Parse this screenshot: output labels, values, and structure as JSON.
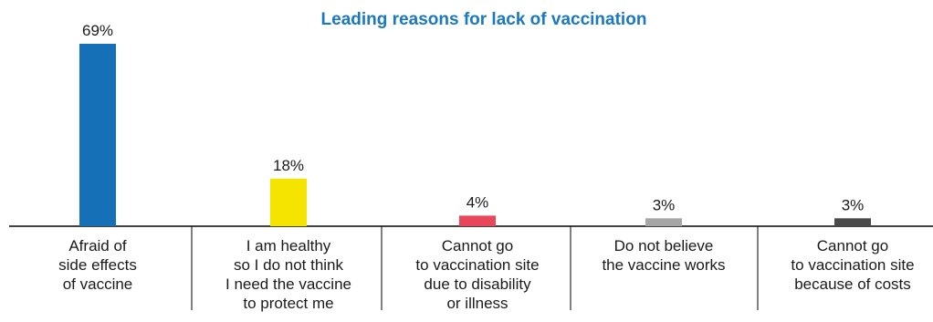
{
  "chart_data": {
    "type": "bar",
    "title": "Leading reasons for lack of vaccination",
    "title_color": "#1a78c2",
    "categories": [
      [
        "Afraid of",
        "side effects",
        "of vaccine"
      ],
      [
        "I am healthy",
        "so I do not think",
        "I need the vaccine",
        "to protect me"
      ],
      [
        "Cannot go",
        "to vaccination site",
        "due to disability",
        "or illness"
      ],
      [
        "Do not believe",
        "the vaccine works"
      ],
      [
        "Cannot go",
        "to vaccination site",
        "because of costs"
      ]
    ],
    "values": [
      69,
      18,
      4,
      3,
      3
    ],
    "value_labels": [
      "69%",
      "18%",
      "4%",
      "3%",
      "3%"
    ],
    "colors": [
      "#1570b8",
      "#f5e400",
      "#e8465b",
      "#a6a6a6",
      "#4a4a4a"
    ],
    "ylim": [
      0,
      69
    ],
    "grid": false,
    "legend": "none"
  }
}
